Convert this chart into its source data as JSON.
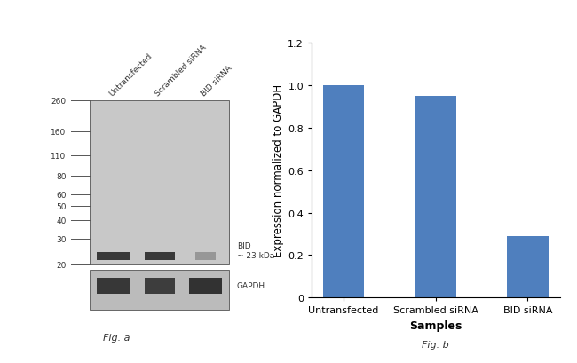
{
  "bar_categories": [
    "Untransfected",
    "Scrambled siRNA",
    "BID siRNA"
  ],
  "bar_values": [
    1.0,
    0.95,
    0.29
  ],
  "bar_color": "#4f7fbe",
  "bar_edgecolor": "#4f7fbe",
  "ylabel": "Expression normalized to GAPDH",
  "xlabel": "Samples",
  "xlabel_fontweight": "bold",
  "ylim": [
    0,
    1.2
  ],
  "yticks": [
    0.0,
    0.2,
    0.4,
    0.6,
    0.8,
    1.0,
    1.2
  ],
  "ytick_labels": [
    "0",
    "0.2",
    "0.4",
    "0.6",
    "0.8",
    "1.0",
    "1.2"
  ],
  "fig_b_label": "Fig. b",
  "fig_a_label": "Fig. a",
  "background_color": "#ffffff",
  "wb_marker_values": [
    260,
    160,
    110,
    80,
    60,
    50,
    40,
    30,
    20
  ],
  "wb_marker_labels": [
    "260",
    "160",
    "110",
    "80",
    "60",
    "50",
    "40",
    "30",
    "20"
  ],
  "wb_bid_label": "BID\n~ 23 kDa",
  "wb_gapdh_label": "GAPDH",
  "wb_lane_labels": [
    "Untransfected",
    "Scrambled siRNA",
    "BID siRNA"
  ],
  "bar_width": 0.45,
  "tick_fontsize": 8,
  "label_fontsize": 9,
  "axis_linewidth": 0.8,
  "gel_facecolor": "#c8c8c8",
  "gapdh_facecolor": "#bbbbbb",
  "band_color": "#1a1a1a"
}
